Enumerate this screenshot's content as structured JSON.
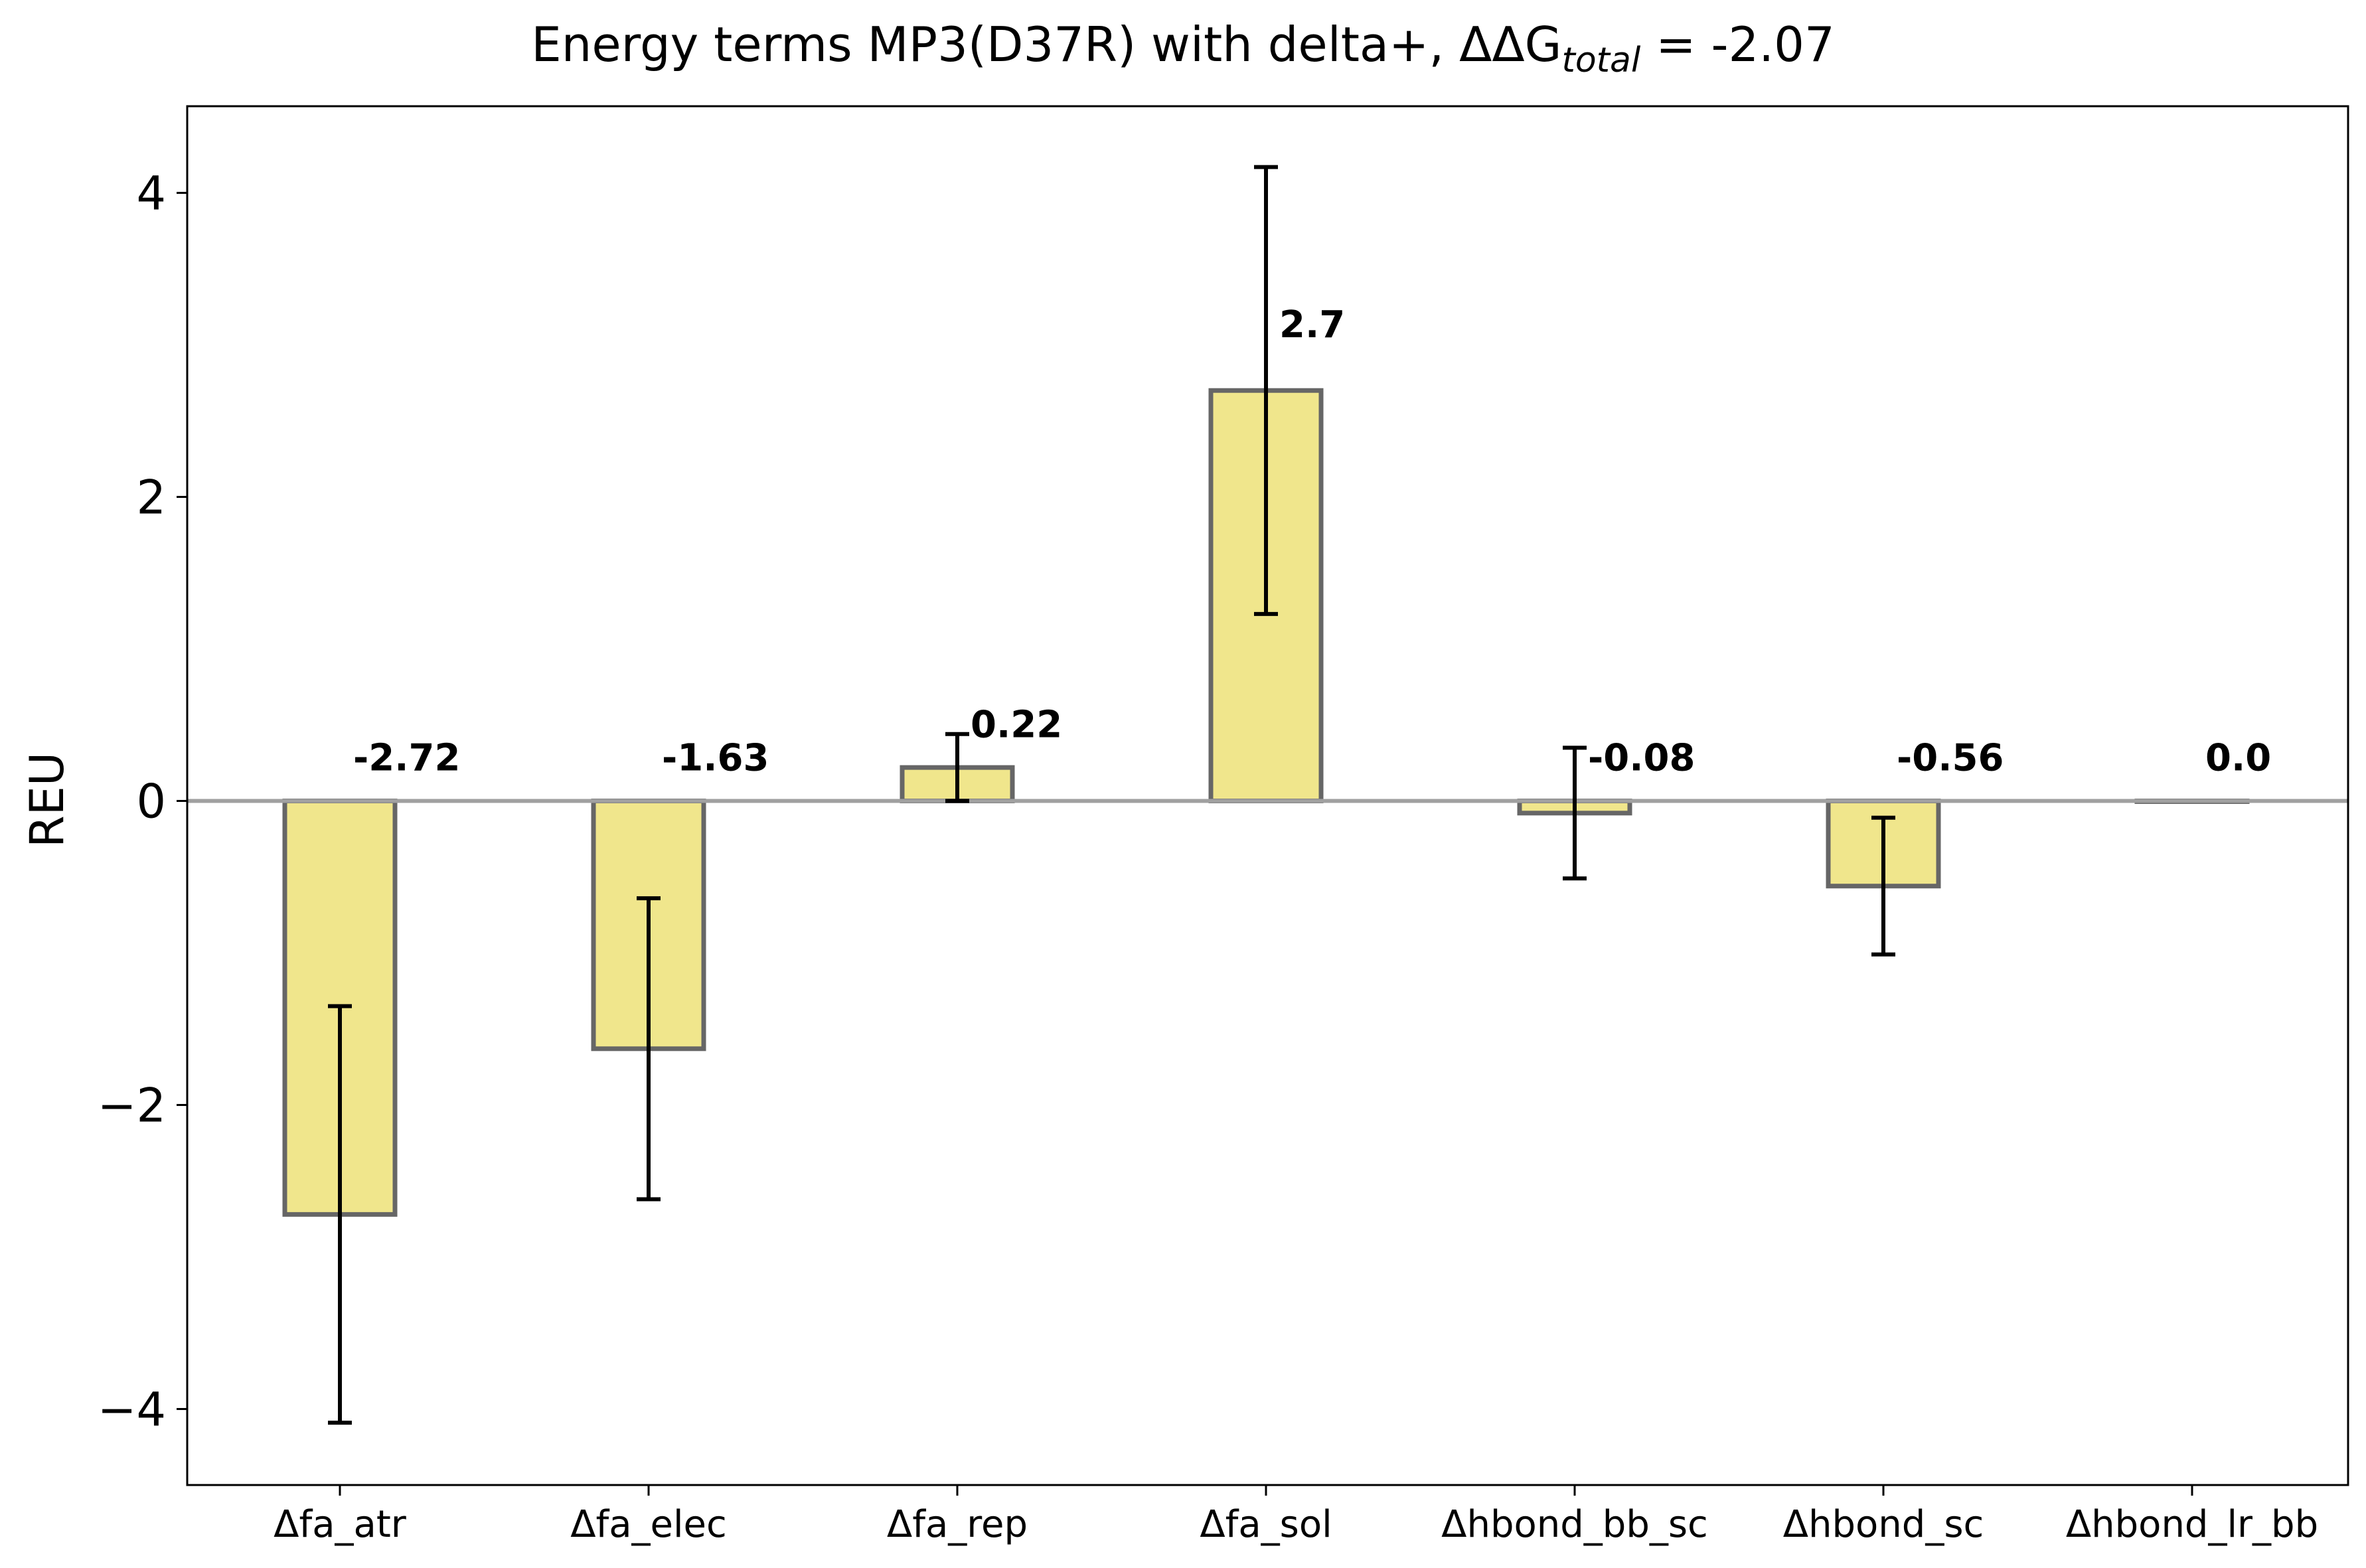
{
  "chart_data": {
    "type": "bar",
    "title": "Energy terms MP3(D37R) with delta+, ΔΔG",
    "title_subscript": "total",
    "title_suffix": " = -2.07",
    "xlabel": "",
    "ylabel": "REU",
    "categories": [
      "Δfa_atr",
      "Δfa_elec",
      "Δfa_rep",
      "Δfa_sol",
      "Δhbond_bb_sc",
      "Δhbond_sc",
      "Δhbond_lr_bb"
    ],
    "values": [
      -2.72,
      -1.63,
      0.22,
      2.7,
      -0.08,
      -0.56,
      0.0
    ],
    "value_labels": [
      "-2.72",
      "-1.63",
      "0.22",
      "2.7",
      "-0.08",
      "-0.56",
      "0.0"
    ],
    "errors": [
      1.37,
      0.99,
      0.22,
      1.47,
      0.43,
      0.45,
      0.0
    ],
    "ylim": [
      -4.5,
      4.57
    ],
    "yticks": [
      -4,
      -2,
      0,
      2,
      4
    ],
    "ytick_labels": [
      "−4",
      "−2",
      "0",
      "2",
      "4"
    ],
    "grid": false,
    "zero_line": true,
    "colors": {
      "bar_fill": "#f0e68c",
      "bar_edge": "#666666",
      "error_bar": "#000000",
      "zero_line": "#a0a0a0"
    }
  }
}
